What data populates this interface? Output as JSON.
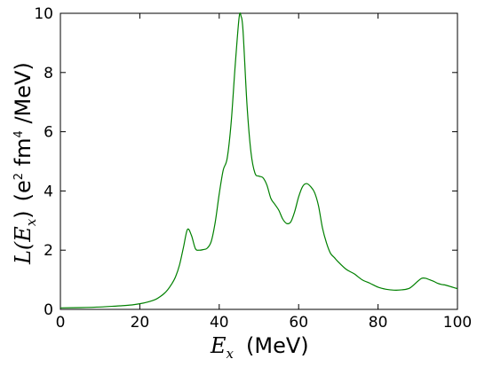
{
  "chart_data": {
    "type": "line",
    "xlabel": {
      "symbol": "E",
      "sub": "x",
      "unit": "(MeV)"
    },
    "ylabel": {
      "symbol": "L",
      "sub": "x",
      "prefix": "(E",
      "close": ")",
      "unit_a": "(e",
      "unit_sup1": "2",
      "unit_b": " fm",
      "unit_sup2": "4",
      "unit_c": " /MeV)"
    },
    "xlim": [
      0,
      100
    ],
    "ylim": [
      0,
      10
    ],
    "xticks": [
      "0",
      "20",
      "40",
      "60",
      "80",
      "100"
    ],
    "yticks": [
      "0",
      "2",
      "4",
      "6",
      "8",
      "10"
    ],
    "grid": false,
    "series": [
      {
        "color": "#008000",
        "x": [
          0,
          5,
          10,
          15,
          18,
          20,
          22,
          24,
          25,
          26,
          27,
          28,
          29,
          30,
          31,
          32,
          33,
          34,
          35,
          36,
          37,
          38,
          39,
          40,
          41,
          42,
          43,
          44,
          45,
          45.5,
          46,
          47,
          48,
          49,
          50,
          51,
          52,
          53,
          54,
          55,
          56,
          57,
          58,
          59,
          60,
          61,
          62,
          63,
          64,
          65,
          66,
          67,
          68,
          69,
          70,
          72,
          74,
          76,
          78,
          80,
          82,
          84,
          86,
          88,
          90,
          91,
          92,
          93,
          94,
          95,
          96,
          97,
          98,
          99,
          100
        ],
        "y": [
          0.05,
          0.06,
          0.08,
          0.12,
          0.15,
          0.19,
          0.25,
          0.34,
          0.42,
          0.52,
          0.66,
          0.85,
          1.1,
          1.5,
          2.1,
          2.7,
          2.5,
          2.05,
          2.0,
          2.02,
          2.07,
          2.3,
          2.95,
          3.9,
          4.7,
          5.1,
          6.3,
          8.2,
          9.85,
          9.9,
          9.4,
          6.9,
          5.3,
          4.6,
          4.5,
          4.45,
          4.2,
          3.75,
          3.55,
          3.35,
          3.05,
          2.9,
          2.95,
          3.3,
          3.8,
          4.15,
          4.25,
          4.15,
          3.95,
          3.5,
          2.75,
          2.25,
          1.9,
          1.75,
          1.6,
          1.35,
          1.2,
          1.0,
          0.88,
          0.75,
          0.68,
          0.65,
          0.66,
          0.72,
          0.95,
          1.05,
          1.05,
          1.0,
          0.95,
          0.88,
          0.84,
          0.82,
          0.78,
          0.74,
          0.7
        ]
      }
    ]
  }
}
